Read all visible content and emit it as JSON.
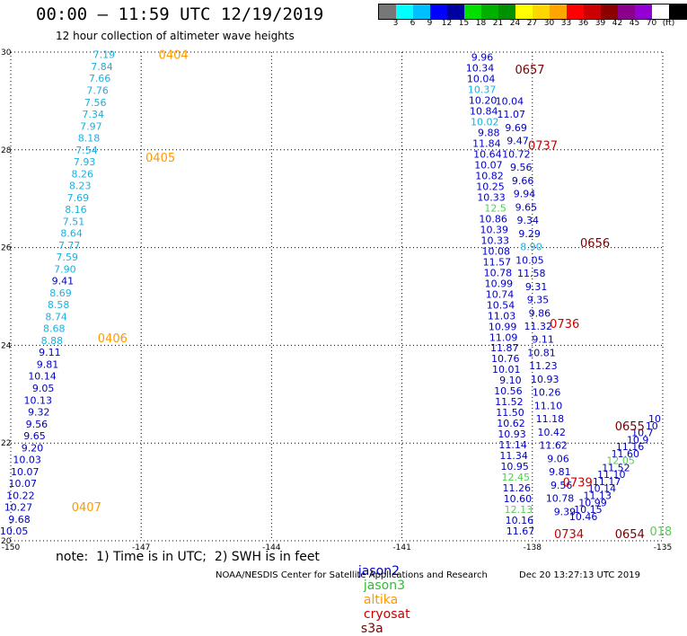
{
  "header": {
    "title": "00:00 – 11:59 UTC 12/19/2019",
    "subtitle": "12 hour collection of altimeter wave heights"
  },
  "colorbar": {
    "colors": [
      "#777777",
      "#00ffff",
      "#00bfff",
      "#0000ff",
      "#0000a0",
      "#00e000",
      "#00b000",
      "#009000",
      "#ffff00",
      "#ffd700",
      "#ffa500",
      "#ff0000",
      "#cc0000",
      "#8b0000",
      "#8b008b",
      "#9400d3",
      "#ffffff",
      "#000000"
    ],
    "labels": [
      "3",
      "6",
      "9",
      "12",
      "15",
      "18",
      "21",
      "24",
      "27",
      "30",
      "33",
      "36",
      "39",
      "42",
      "45",
      "70",
      "(ft)"
    ]
  },
  "map": {
    "x_ticks": [
      "-150",
      "-147",
      "-144",
      "-141",
      "-138",
      "-135"
    ],
    "y_ticks": [
      "30",
      "28",
      "26",
      "24",
      "22",
      "20"
    ],
    "xlim": [
      -150,
      -135
    ],
    "ylim": [
      20,
      30
    ]
  },
  "sat_colors": {
    "jason2": "#0000c0",
    "jason3": "#55cc55",
    "altika": "#ff9900",
    "cryosat": "#cc0000",
    "s3a": "#7a0000",
    "light": "#1ab0e0"
  },
  "tracks": {
    "west": {
      "lon_top": -147.6,
      "lon_bot": -149.6,
      "lat_top": 29.95,
      "lat_bot": 20.2,
      "values": [
        {
          "v": "7.19",
          "c": "light"
        },
        {
          "v": "7.84",
          "c": "light"
        },
        {
          "v": "7.66",
          "c": "light"
        },
        {
          "v": "7.76",
          "c": "light"
        },
        {
          "v": "7.56",
          "c": "light"
        },
        {
          "v": "7.34",
          "c": "light"
        },
        {
          "v": "7.97",
          "c": "light"
        },
        {
          "v": "8.18",
          "c": "light"
        },
        {
          "v": "7.54",
          "c": "light"
        },
        {
          "v": "7.93",
          "c": "light"
        },
        {
          "v": "8.26",
          "c": "light"
        },
        {
          "v": "8.23",
          "c": "light"
        },
        {
          "v": "7.69",
          "c": "light"
        },
        {
          "v": "8.16",
          "c": "light"
        },
        {
          "v": "7.51",
          "c": "light"
        },
        {
          "v": "8.64",
          "c": "light"
        },
        {
          "v": "7.77",
          "c": "light"
        },
        {
          "v": "7.59",
          "c": "light"
        },
        {
          "v": "7.90",
          "c": "light"
        },
        {
          "v": "9.41",
          "c": "jason2"
        },
        {
          "v": "8.69",
          "c": "light"
        },
        {
          "v": "8.58",
          "c": "light"
        },
        {
          "v": "8.74",
          "c": "light"
        },
        {
          "v": "8.68",
          "c": "light"
        },
        {
          "v": "8.88",
          "c": "light"
        },
        {
          "v": "9.11",
          "c": "jason2"
        },
        {
          "v": "9.81",
          "c": "jason2"
        },
        {
          "v": "10.14",
          "c": "jason2"
        },
        {
          "v": "9.05",
          "c": "jason2"
        },
        {
          "v": "10.13",
          "c": "jason2"
        },
        {
          "v": "9.32",
          "c": "jason2"
        },
        {
          "v": "9.56",
          "c": "jason2"
        },
        {
          "v": "9.65",
          "c": "jason2"
        },
        {
          "v": "9.20",
          "c": "jason2"
        },
        {
          "v": "10.03",
          "c": "jason2"
        },
        {
          "v": "10.07",
          "c": "jason2"
        },
        {
          "v": "10.07",
          "c": "jason2"
        },
        {
          "v": "10.22",
          "c": "jason2"
        },
        {
          "v": "10.27",
          "c": "jason2"
        },
        {
          "v": "9.68",
          "c": "jason2"
        },
        {
          "v": "10.05",
          "c": "jason2"
        }
      ]
    },
    "east": {
      "lon_top": -138.9,
      "lon_bot": -137.95,
      "lat_top": 29.9,
      "lat_bot": 20.2,
      "values": [
        {
          "v": "9.96",
          "c": "jason2"
        },
        {
          "v": "10.34",
          "c": "jason2"
        },
        {
          "v": "10.04",
          "c": "jason2"
        },
        {
          "v": "10.37",
          "c": "light"
        },
        {
          "v": "10.20",
          "c": "jason2"
        },
        {
          "v": "10.84",
          "c": "jason2"
        },
        {
          "v": "10.02",
          "c": "light"
        },
        {
          "v": "9.88",
          "c": "jason2"
        },
        {
          "v": "11.84",
          "c": "jason2"
        },
        {
          "v": "10.64",
          "c": "jason2"
        },
        {
          "v": "10.07",
          "c": "jason2"
        },
        {
          "v": "10.82",
          "c": "jason2"
        },
        {
          "v": "10.25",
          "c": "jason2"
        },
        {
          "v": "10.33",
          "c": "jason2"
        },
        {
          "v": "12.5",
          "c": "jason3"
        },
        {
          "v": "10.86",
          "c": "jason2"
        },
        {
          "v": "10.39",
          "c": "jason2"
        },
        {
          "v": "10.33",
          "c": "jason2"
        },
        {
          "v": "10.08",
          "c": "jason2"
        },
        {
          "v": "11.57",
          "c": "jason2"
        },
        {
          "v": "10.78",
          "c": "jason2"
        },
        {
          "v": "10.99",
          "c": "jason2"
        },
        {
          "v": "10.74",
          "c": "jason2"
        },
        {
          "v": "10.54",
          "c": "jason2"
        },
        {
          "v": "11.03",
          "c": "jason2"
        },
        {
          "v": "10.99",
          "c": "jason2"
        },
        {
          "v": "11.09",
          "c": "jason2"
        },
        {
          "v": "11.87",
          "c": "jason2"
        },
        {
          "v": "10.76",
          "c": "jason2"
        },
        {
          "v": "10.01",
          "c": "jason2"
        },
        {
          "v": "9.10",
          "c": "jason2"
        },
        {
          "v": "10.56",
          "c": "jason2"
        },
        {
          "v": "11.52",
          "c": "jason2"
        },
        {
          "v": "11.50",
          "c": "jason2"
        },
        {
          "v": "10.62",
          "c": "jason2"
        },
        {
          "v": "10.93",
          "c": "jason2"
        },
        {
          "v": "11.14",
          "c": "jason2"
        },
        {
          "v": "11.34",
          "c": "jason2"
        },
        {
          "v": "10.95",
          "c": "jason2"
        },
        {
          "v": "12.45",
          "c": "jason3"
        },
        {
          "v": "11.26",
          "c": "jason2"
        },
        {
          "v": "10.60",
          "c": "jason2"
        },
        {
          "v": "12.13",
          "c": "jason3"
        },
        {
          "v": "10.16",
          "c": "jason2"
        },
        {
          "v": "11.67",
          "c": "jason2"
        }
      ]
    },
    "mid": {
      "lon_top": -138.2,
      "lon_bot": -137.0,
      "lat_top": 29.0,
      "lat_bot": 20.6,
      "values": [
        {
          "v": "10.04",
          "c": "jason2"
        },
        {
          "v": "11.07",
          "c": "jason2"
        },
        {
          "v": "9.69",
          "c": "jason2"
        },
        {
          "v": "9.47",
          "c": "jason2"
        },
        {
          "v": "10.72",
          "c": "jason2"
        },
        {
          "v": "9.56",
          "c": "jason2"
        },
        {
          "v": "9.66",
          "c": "jason2"
        },
        {
          "v": "9.94",
          "c": "jason2"
        },
        {
          "v": "9.65",
          "c": "jason2"
        },
        {
          "v": "9.34",
          "c": "jason2"
        },
        {
          "v": "9.29",
          "c": "jason2"
        },
        {
          "v": "8.90",
          "c": "light"
        },
        {
          "v": "10.05",
          "c": "jason2"
        },
        {
          "v": "11.58",
          "c": "jason2"
        },
        {
          "v": "9.31",
          "c": "jason2"
        },
        {
          "v": "9.35",
          "c": "jason2"
        },
        {
          "v": "9.86",
          "c": "jason2"
        },
        {
          "v": "11.32",
          "c": "jason2"
        },
        {
          "v": "9.11",
          "c": "jason2"
        },
        {
          "v": "10.81",
          "c": "jason2"
        },
        {
          "v": "11.23",
          "c": "jason2"
        },
        {
          "v": "10.93",
          "c": "jason2"
        },
        {
          "v": "10.26",
          "c": "jason2"
        },
        {
          "v": "11.10",
          "c": "jason2"
        },
        {
          "v": "11.18",
          "c": "jason2"
        },
        {
          "v": "10.42",
          "c": "jason2"
        },
        {
          "v": "11.62",
          "c": "jason2"
        },
        {
          "v": "9.06",
          "c": "jason2"
        },
        {
          "v": "9.81",
          "c": "jason2"
        },
        {
          "v": "9.56",
          "c": "jason2"
        },
        {
          "v": "10.78",
          "c": "jason2"
        },
        {
          "v": "9.39",
          "c": "jason2"
        }
      ]
    },
    "southeast": {
      "lon_top": -135.0,
      "lon_bot": -136.5,
      "lat_top": 22.5,
      "lat_bot": 20.5,
      "values": [
        {
          "v": "10",
          "c": "jason2"
        },
        {
          "v": "10",
          "c": "jason2"
        },
        {
          "v": "10.7",
          "c": "jason2"
        },
        {
          "v": "10.9",
          "c": "jason2"
        },
        {
          "v": "11.16",
          "c": "jason2"
        },
        {
          "v": "11.60",
          "c": "jason2"
        },
        {
          "v": "12.05",
          "c": "jason3"
        },
        {
          "v": "11.52",
          "c": "jason2"
        },
        {
          "v": "11.10",
          "c": "jason2"
        },
        {
          "v": "11.17",
          "c": "jason2"
        },
        {
          "v": "10.14",
          "c": "jason2"
        },
        {
          "v": "11.13",
          "c": "jason2"
        },
        {
          "v": "10.99",
          "c": "jason2"
        },
        {
          "v": "10.15",
          "c": "jason2"
        },
        {
          "v": "10.46",
          "c": "jason2"
        }
      ]
    }
  },
  "time_labels": [
    {
      "t": "0404",
      "c": "altika",
      "lon": -146.6,
      "lat": 29.95
    },
    {
      "t": "0405",
      "c": "altika",
      "lon": -146.9,
      "lat": 27.85
    },
    {
      "t": "0406",
      "c": "altika",
      "lon": -148.0,
      "lat": 24.15
    },
    {
      "t": "0407",
      "c": "altika",
      "lon": -148.6,
      "lat": 20.7
    },
    {
      "t": "0657",
      "c": "s3a",
      "lon": -138.4,
      "lat": 29.65
    },
    {
      "t": "0737",
      "c": "cryosat",
      "lon": -138.1,
      "lat": 28.1
    },
    {
      "t": "0656",
      "c": "s3a",
      "lon": -136.9,
      "lat": 26.1
    },
    {
      "t": "0736",
      "c": "cryosat",
      "lon": -137.6,
      "lat": 24.45
    },
    {
      "t": "0655",
      "c": "s3a",
      "lon": -136.1,
      "lat": 22.35
    },
    {
      "t": "0739",
      "c": "cryosat",
      "lon": -137.3,
      "lat": 21.2
    },
    {
      "t": "0734",
      "c": "cryosat",
      "lon": -137.5,
      "lat": 20.15
    },
    {
      "t": "0654",
      "c": "s3a",
      "lon": -136.1,
      "lat": 20.15
    },
    {
      "t": "018",
      "c": "jason3",
      "lon": -135.3,
      "lat": 20.2
    }
  ],
  "footer": {
    "note": "note:  1) Time is in UTC;  2) SWH is in feet",
    "sat_labels": [
      "jason2",
      "jason3",
      "altika",
      "cryosat",
      "s3a"
    ],
    "credit": "NOAA/NESDIS Center for Satellite Applications and Research",
    "stamp": "Dec 20 13:27:13 UTC 2019"
  }
}
